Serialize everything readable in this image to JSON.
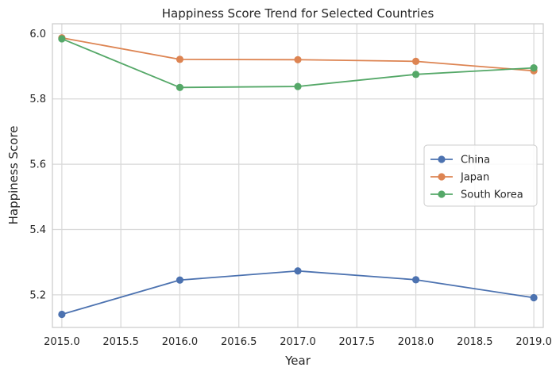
{
  "chart_data": {
    "type": "line",
    "title": "Happiness Score Trend for Selected Countries",
    "xlabel": "Year",
    "ylabel": "Happiness Score",
    "x": [
      2015,
      2016,
      2017,
      2018,
      2019
    ],
    "xlim": [
      2014.92,
      2019.08
    ],
    "ylim": [
      5.1,
      6.03
    ],
    "xticks": [
      2015.0,
      2015.5,
      2016.0,
      2016.5,
      2017.0,
      2017.5,
      2018.0,
      2018.5,
      2019.0
    ],
    "xtick_labels": [
      "2015.0",
      "2015.5",
      "2016.0",
      "2016.5",
      "2017.0",
      "2017.5",
      "2018.0",
      "2018.5",
      "2019.0"
    ],
    "yticks": [
      5.2,
      5.4,
      5.6,
      5.8,
      6.0
    ],
    "ytick_labels": [
      "5.2",
      "5.4",
      "5.6",
      "5.8",
      "6.0"
    ],
    "grid": true,
    "legend_position": "center-right",
    "series": [
      {
        "name": "China",
        "color": "#4c72b0",
        "values": [
          5.14,
          5.245,
          5.273,
          5.246,
          5.191
        ]
      },
      {
        "name": "Japan",
        "color": "#dd8452",
        "values": [
          5.987,
          5.921,
          5.92,
          5.915,
          5.886
        ]
      },
      {
        "name": "South Korea",
        "color": "#55a868",
        "values": [
          5.984,
          5.835,
          5.838,
          5.875,
          5.895
        ]
      }
    ]
  }
}
